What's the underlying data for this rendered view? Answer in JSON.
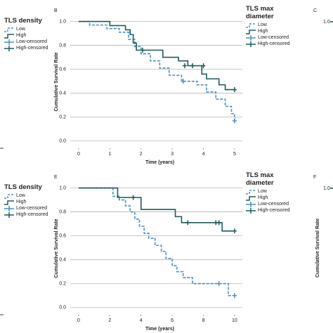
{
  "chart_data": [
    {
      "type": "line",
      "panel_label": "B",
      "xlabel": "Time (years)",
      "ylabel": "Cumulative Survival Rate",
      "legend_title": "TLS max diameter",
      "xlim": [
        -0.27,
        5.25
      ],
      "xticks": [
        0,
        1,
        2,
        3,
        4,
        5
      ],
      "ylim": [
        -0.06,
        1.05
      ],
      "yticks": [
        {
          "value": 0,
          "label": "0.0"
        },
        {
          "value": 0.2,
          "label": "0.2"
        },
        {
          "value": 0.4,
          "label": "0.4"
        },
        {
          "value": 0.6,
          "label": "0.6"
        },
        {
          "value": 0.8,
          "label": "0.8"
        },
        {
          "value": 1,
          "label": "1.0"
        }
      ],
      "grid": true,
      "series": [
        {
          "name": "Low",
          "color": "#4a8fc0",
          "style": "dashed",
          "x": [
            0,
            0.35,
            0.9,
            1.3,
            1.6,
            1.8,
            2.0,
            2.3,
            2.6,
            2.9,
            3.3,
            3.8,
            4.1,
            4.4,
            4.7,
            4.9,
            5.0
          ],
          "values": [
            1.0,
            0.97,
            0.94,
            0.91,
            0.85,
            0.79,
            0.73,
            0.67,
            0.61,
            0.55,
            0.5,
            0.47,
            0.41,
            0.35,
            0.29,
            0.23,
            0.17
          ]
        },
        {
          "name": "High",
          "color": "#1e5b5a",
          "style": "solid",
          "x": [
            0,
            1.0,
            1.5,
            1.65,
            1.75,
            1.85,
            2.7,
            3.2,
            3.5,
            3.95,
            4.1,
            4.5,
            4.7,
            5.0
          ],
          "values": [
            1.0,
            0.965,
            0.93,
            0.89,
            0.82,
            0.76,
            0.7,
            0.67,
            0.63,
            0.56,
            0.52,
            0.47,
            0.43,
            0.43
          ]
        },
        {
          "name": "Low-censored",
          "color": "#4a8fc0",
          "style": "marker",
          "x": [
            3.35,
            5.0
          ],
          "values": [
            0.5,
            0.17
          ]
        },
        {
          "name": "High-censored",
          "color": "#1e5b5a",
          "style": "marker",
          "x": [
            2.05,
            3.4,
            3.65,
            4.0,
            5.0
          ],
          "values": [
            0.76,
            0.63,
            0.63,
            0.63,
            0.43
          ]
        }
      ]
    },
    {
      "type": "line",
      "panel_label": "E",
      "xlabel": "Time (years)",
      "ylabel": "Cumulative Survival Rate",
      "legend_title": "TLS max diameter",
      "xlim": [
        -0.54,
        10.5
      ],
      "xticks": [
        0,
        2,
        4,
        6,
        8,
        10
      ],
      "ylim": [
        -0.06,
        1.05
      ],
      "yticks": [
        {
          "value": 0,
          "label": "0.0"
        },
        {
          "value": 0.2,
          "label": "0.2"
        },
        {
          "value": 0.4,
          "label": "0.4"
        },
        {
          "value": 0.6,
          "label": "0.6"
        },
        {
          "value": 0.8,
          "label": "0.8"
        },
        {
          "value": 1,
          "label": "1.0"
        }
      ],
      "grid": true,
      "series": [
        {
          "name": "Low",
          "color": "#4a8fc0",
          "style": "dashed",
          "x": [
            0,
            2.2,
            2.6,
            3.0,
            3.3,
            3.6,
            3.9,
            4.2,
            4.5,
            4.9,
            5.3,
            5.6,
            6.0,
            6.3,
            6.7,
            7.3,
            9.6,
            10.0
          ],
          "values": [
            1.0,
            0.93,
            0.9,
            0.85,
            0.8,
            0.74,
            0.68,
            0.62,
            0.58,
            0.52,
            0.47,
            0.41,
            0.35,
            0.3,
            0.25,
            0.2,
            0.1,
            0.1
          ]
        },
        {
          "name": "High",
          "color": "#1e5b5a",
          "style": "solid",
          "x": [
            0,
            2.5,
            4.0,
            6.2,
            6.6,
            9.2,
            10.0
          ],
          "values": [
            1.0,
            0.92,
            0.82,
            0.76,
            0.71,
            0.64,
            0.64
          ]
        },
        {
          "name": "Low-censored",
          "color": "#4a8fc0",
          "style": "marker",
          "x": [
            9.0,
            10.0
          ],
          "values": [
            0.2,
            0.1
          ]
        },
        {
          "name": "High-censored",
          "color": "#1e5b5a",
          "style": "marker",
          "x": [
            3.5,
            7.0,
            8.8,
            9.0,
            10.0
          ],
          "values": [
            0.92,
            0.71,
            0.71,
            0.71,
            0.64
          ]
        }
      ]
    }
  ],
  "left_panels": [
    {
      "legend_title": "TLS density",
      "legend": [
        "Low",
        "High",
        "Low-censored",
        "High-censored"
      ]
    },
    {
      "legend_title": "TLS density",
      "legend": [
        "Low",
        "High",
        "Low-censored",
        "High-censored"
      ]
    }
  ],
  "right_panels": [
    {
      "panel_label": "C",
      "ytick": "1.0"
    },
    {
      "panel_label": "F",
      "ytick": "1.0",
      "ylabel": "Cumulative Survival Rate"
    }
  ]
}
